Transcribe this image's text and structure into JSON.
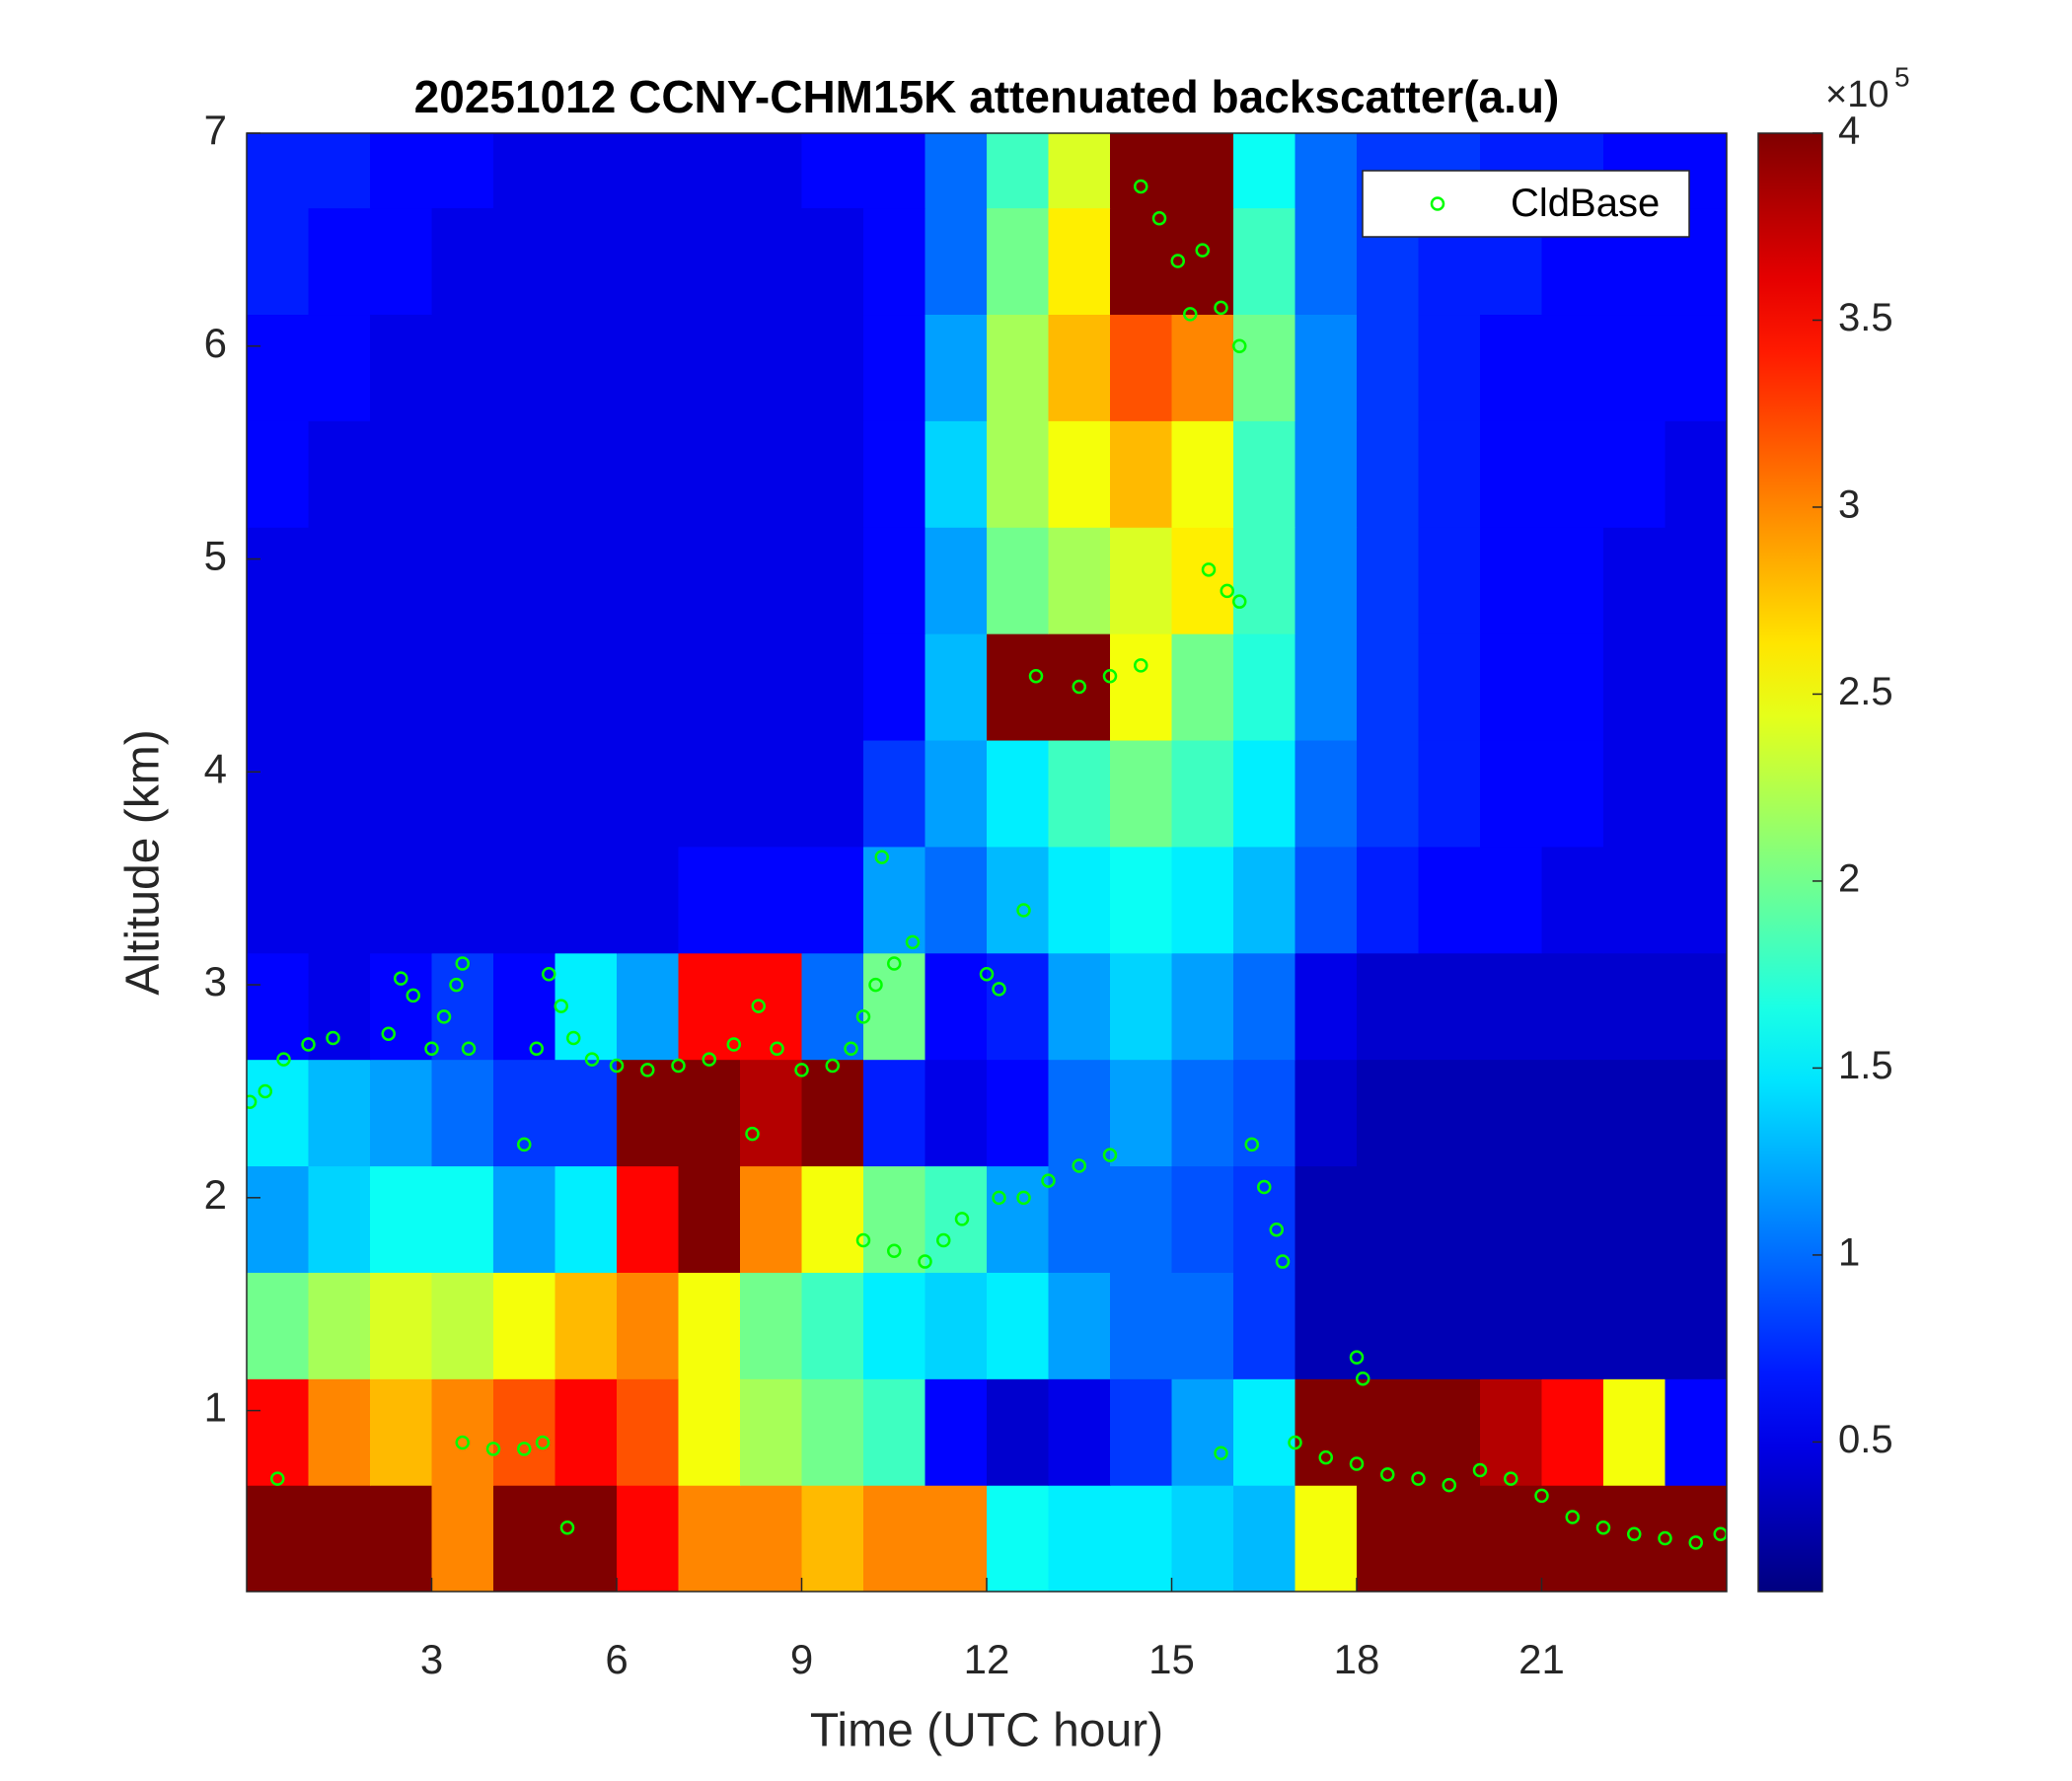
{
  "chart_data": {
    "type": "heatmap",
    "title": "20251012 CCNY-CHM15K attenuated backscatter(a.u)",
    "xlabel": "Time (UTC hour)",
    "ylabel": "Altitude (km)",
    "xlim": [
      0,
      24
    ],
    "ylim": [
      0.15,
      7
    ],
    "xticks": [
      3,
      6,
      9,
      12,
      15,
      18,
      21
    ],
    "yticks": [
      1,
      2,
      3,
      4,
      5,
      6,
      7
    ],
    "colormap": "jet",
    "heatmap": {
      "x": [
        0.5,
        1.5,
        2.5,
        3.5,
        4.5,
        5.5,
        6.5,
        7.5,
        8.5,
        9.5,
        10.5,
        11.5,
        12.5,
        13.5,
        14.5,
        15.5,
        16.5,
        17.5,
        18.5,
        19.5,
        20.5,
        21.5,
        22.5,
        23.5
      ],
      "y": [
        0.4,
        0.9,
        1.4,
        1.9,
        2.4,
        2.9,
        3.4,
        3.9,
        4.4,
        4.9,
        5.4,
        5.9,
        6.4,
        6.9
      ],
      "z": [
        [
          4,
          4,
          4,
          3,
          4,
          4,
          3.5,
          3,
          3,
          2.8,
          3,
          3,
          1.6,
          1.5,
          1.5,
          1.4,
          1.3,
          2.5,
          4,
          4,
          4,
          4,
          4,
          4
        ],
        [
          3.5,
          3,
          2.8,
          3,
          3.2,
          3.5,
          3.2,
          2.5,
          2.2,
          2,
          1.8,
          0.6,
          0.4,
          0.5,
          0.8,
          1.2,
          1.5,
          4,
          4,
          4,
          3.8,
          3.5,
          2.5,
          0.6
        ],
        [
          2,
          2.2,
          2.4,
          2.3,
          2.5,
          2.8,
          3,
          2.5,
          2,
          1.8,
          1.5,
          1.4,
          1.5,
          1.2,
          1,
          1,
          0.8,
          0.3,
          0.3,
          0.3,
          0.3,
          0.3,
          0.3,
          0.3
        ],
        [
          1.2,
          1.4,
          1.6,
          1.6,
          1.2,
          1.5,
          3.5,
          4,
          3,
          2.5,
          2,
          1.8,
          1.2,
          1,
          1,
          0.9,
          0.8,
          0.3,
          0.3,
          0.3,
          0.3,
          0.3,
          0.3,
          0.3
        ],
        [
          1.5,
          1.3,
          1.2,
          1,
          0.8,
          0.8,
          4,
          4,
          3.8,
          4,
          0.7,
          0.5,
          0.6,
          1,
          1.2,
          1,
          0.9,
          0.4,
          0.3,
          0.3,
          0.3,
          0.3,
          0.3,
          0.3
        ],
        [
          0.6,
          0.5,
          0.6,
          0.8,
          0.6,
          1.5,
          1.2,
          3.5,
          3.5,
          1,
          2,
          0.6,
          0.7,
          1.2,
          1.4,
          1.2,
          1,
          0.5,
          0.4,
          0.4,
          0.4,
          0.4,
          0.4,
          0.4
        ],
        [
          0.5,
          0.5,
          0.5,
          0.5,
          0.5,
          0.5,
          0.5,
          0.6,
          0.6,
          0.6,
          1.2,
          1,
          1.3,
          1.5,
          1.6,
          1.5,
          1.3,
          0.9,
          0.7,
          0.6,
          0.6,
          0.5,
          0.5,
          0.5
        ],
        [
          0.5,
          0.5,
          0.5,
          0.5,
          0.5,
          0.5,
          0.5,
          0.5,
          0.5,
          0.5,
          0.8,
          1.2,
          1.5,
          1.8,
          2,
          1.8,
          1.5,
          1,
          0.8,
          0.7,
          0.6,
          0.6,
          0.5,
          0.5
        ],
        [
          0.5,
          0.5,
          0.5,
          0.5,
          0.5,
          0.5,
          0.5,
          0.5,
          0.5,
          0.5,
          0.6,
          1.3,
          4,
          4,
          2.5,
          2,
          1.7,
          1.1,
          0.8,
          0.7,
          0.6,
          0.6,
          0.5,
          0.5
        ],
        [
          0.5,
          0.5,
          0.5,
          0.5,
          0.5,
          0.5,
          0.5,
          0.5,
          0.5,
          0.5,
          0.6,
          1.2,
          2,
          2.2,
          2.4,
          2.6,
          1.8,
          1.1,
          0.8,
          0.7,
          0.6,
          0.6,
          0.5,
          0.5
        ],
        [
          0.6,
          0.5,
          0.5,
          0.5,
          0.5,
          0.5,
          0.5,
          0.5,
          0.5,
          0.5,
          0.6,
          1.4,
          2.2,
          2.5,
          2.8,
          2.5,
          1.8,
          1.1,
          0.8,
          0.7,
          0.6,
          0.6,
          0.6,
          0.5
        ],
        [
          0.6,
          0.6,
          0.5,
          0.5,
          0.5,
          0.5,
          0.5,
          0.5,
          0.5,
          0.5,
          0.6,
          1.2,
          2.2,
          2.8,
          3.2,
          3,
          2,
          1.1,
          0.8,
          0.7,
          0.6,
          0.6,
          0.6,
          0.6
        ],
        [
          0.7,
          0.6,
          0.6,
          0.5,
          0.5,
          0.5,
          0.5,
          0.5,
          0.5,
          0.5,
          0.6,
          1,
          2,
          2.6,
          4,
          4,
          1.8,
          1,
          0.8,
          0.7,
          0.7,
          0.6,
          0.6,
          0.6
        ],
        [
          0.7,
          0.7,
          0.6,
          0.6,
          0.5,
          0.5,
          0.5,
          0.5,
          0.5,
          0.6,
          0.6,
          1,
          1.8,
          2.4,
          4,
          4,
          1.6,
          1,
          0.8,
          0.8,
          0.7,
          0.7,
          0.6,
          0.6
        ]
      ]
    },
    "colorbar": {
      "lim": [
        0.1,
        4
      ],
      "ticks": [
        0.5,
        1,
        1.5,
        2,
        2.5,
        3,
        3.5,
        4
      ],
      "multiplier": "×10",
      "exponent": "5"
    },
    "series": [
      {
        "name": "CldBase",
        "type": "scatter",
        "color": "#00ff00",
        "x": [
          0.05,
          0.3,
          0.6,
          1.0,
          1.4,
          0.5,
          2.3,
          2.5,
          2.7,
          3.0,
          3.2,
          3.4,
          3.5,
          3.6,
          3.5,
          4.0,
          4.5,
          4.7,
          4.8,
          4.5,
          4.9,
          5.1,
          5.2,
          5.3,
          5.6,
          6,
          6.5,
          7,
          7.5,
          7.9,
          8.3,
          8.2,
          8.6,
          9,
          9.5,
          9.8,
          10,
          10.2,
          10.3,
          10.5,
          10.8,
          10,
          10.5,
          11,
          11.3,
          11.6,
          12,
          12.2,
          12.6,
          12.2,
          12.6,
          13,
          13.5,
          14,
          12.8,
          13.5,
          14,
          14.5,
          14.5,
          14.8,
          15.1,
          15.3,
          15.5,
          15.8,
          16.1,
          15.6,
          15.9,
          16.1,
          16.3,
          16.5,
          16.7,
          16.8,
          15.8,
          17.0,
          17.5,
          18,
          18.5,
          19,
          19.5,
          20,
          20.5,
          21,
          21.5,
          22,
          22.5,
          23,
          23.5,
          23.9,
          18,
          18.1
        ],
        "values": [
          2.45,
          2.5,
          2.65,
          2.72,
          2.75,
          0.68,
          2.77,
          3.03,
          2.95,
          2.7,
          2.85,
          3.0,
          3.1,
          2.7,
          0.85,
          0.82,
          0.82,
          2.7,
          0.85,
          2.25,
          3.05,
          2.9,
          0.45,
          2.75,
          2.65,
          2.62,
          2.6,
          2.62,
          2.65,
          2.72,
          2.9,
          2.3,
          2.7,
          2.6,
          2.62,
          2.7,
          2.85,
          3.0,
          3.6,
          3.1,
          3.2,
          1.8,
          1.75,
          1.7,
          1.8,
          1.9,
          3.05,
          2.98,
          3.35,
          2.0,
          2.0,
          2.08,
          2.15,
          2.2,
          4.45,
          4.4,
          4.45,
          4.5,
          6.75,
          6.6,
          6.4,
          6.15,
          6.45,
          6.18,
          6.0,
          4.95,
          4.85,
          4.8,
          2.25,
          2.05,
          1.85,
          1.7,
          0.8,
          0.85,
          0.78,
          0.75,
          0.7,
          0.68,
          0.65,
          0.72,
          0.68,
          0.6,
          0.5,
          0.45,
          0.42,
          0.4,
          0.38,
          0.42,
          1.25,
          1.15
        ]
      }
    ],
    "legend": "top-right"
  }
}
